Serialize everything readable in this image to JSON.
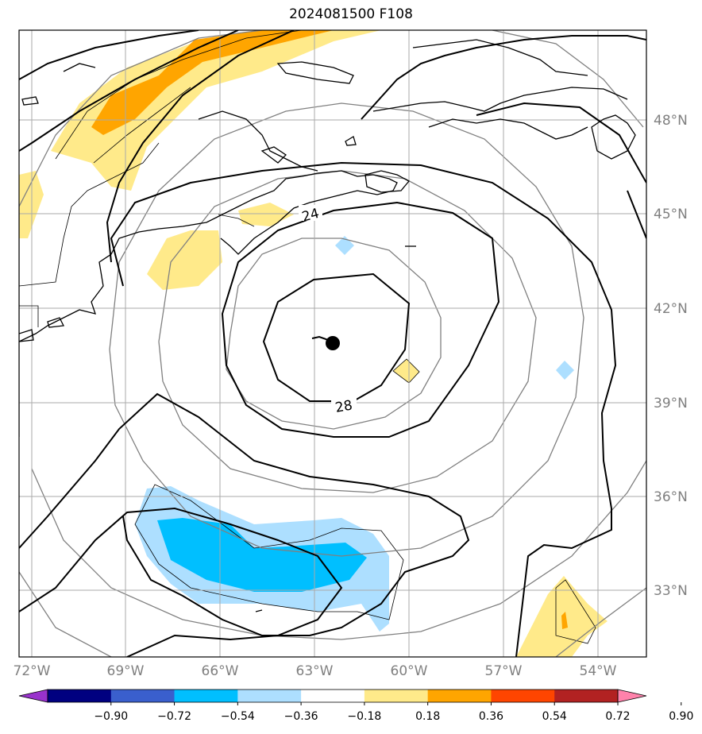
{
  "title": "2024081500 F108",
  "map": {
    "lon_ticks": [
      "72°W",
      "69°W",
      "66°W",
      "63°W",
      "60°W",
      "57°W",
      "54°W"
    ],
    "lat_ticks": [
      "48°N",
      "45°N",
      "42°N",
      "39°N",
      "36°N",
      "33°N"
    ],
    "contour_labels": [
      "24",
      "28"
    ],
    "storm_center_marker": "black-dot"
  },
  "colorbar": {
    "ticks": [
      "−0.90",
      "−0.72",
      "−0.54",
      "−0.36",
      "−0.18",
      "0.18",
      "0.36",
      "0.54",
      "0.72",
      "0.90"
    ],
    "colors": [
      "#9932CC",
      "#000080",
      "#3A5FCD",
      "#00BFFF",
      "#ADDFFF",
      "#FFFFFF",
      "#FFEA8A",
      "#FFA500",
      "#FF4500",
      "#B22222",
      "#FF82AB"
    ]
  }
}
